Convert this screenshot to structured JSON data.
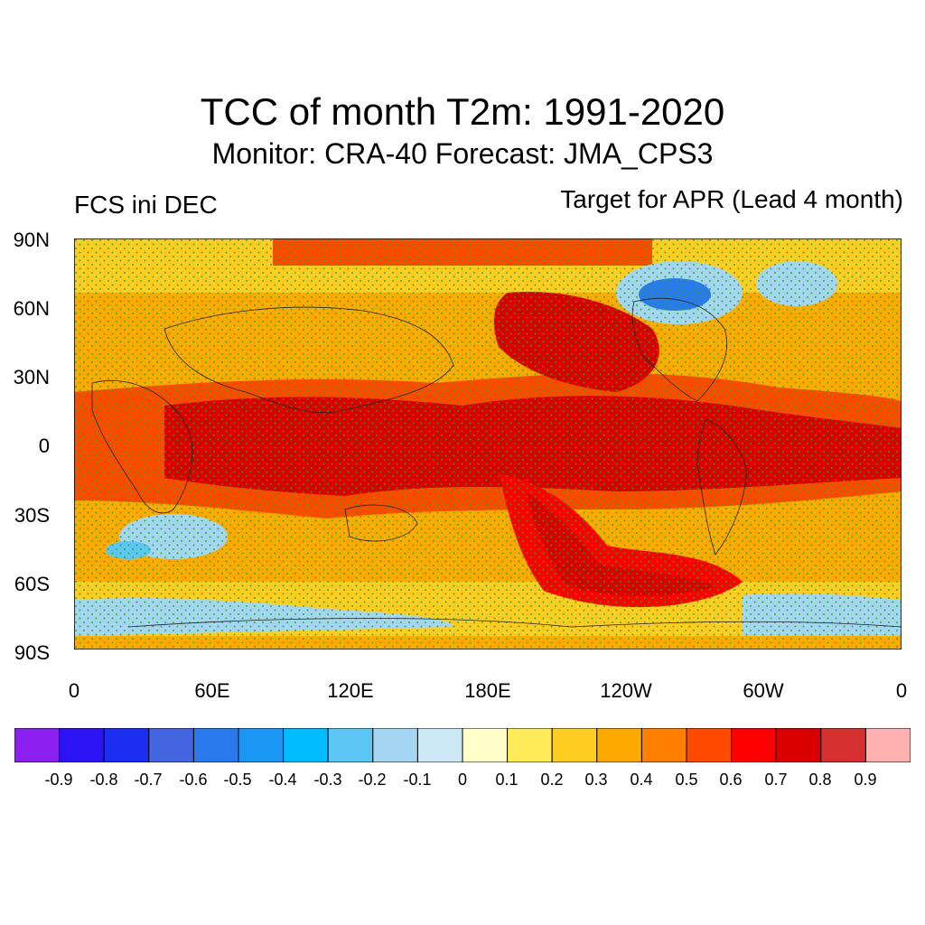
{
  "header": {
    "title": "TCC of month T2m: 1991-2020",
    "subtitle": "Monitor: CRA-40   Forecast: JMA_CPS3",
    "left_label": "FCS ini DEC",
    "right_label": "Target for APR (Lead 4 month)"
  },
  "map": {
    "y_ticks": [
      "90N",
      "60N",
      "30N",
      "0",
      "30S",
      "60S",
      "90S"
    ],
    "x_ticks": [
      "0",
      "60E",
      "120E",
      "180E",
      "120W",
      "60W",
      "0"
    ],
    "field_description_regions": [
      {
        "name": "tropical_pacific",
        "level": 0.8
      },
      {
        "name": "tropical_atlantic_indian",
        "level": 0.7
      },
      {
        "name": "north_pacific",
        "level": 0.6
      },
      {
        "name": "greenland_canada_arctic",
        "level": -0.5
      },
      {
        "name": "southern_ocean_ring",
        "level": -0.2
      }
    ]
  },
  "colorbar": {
    "levels": [
      "-0.9",
      "-0.8",
      "-0.7",
      "-0.6",
      "-0.5",
      "-0.4",
      "-0.3",
      "-0.2",
      "-0.1",
      "0",
      "0.1",
      "0.2",
      "0.3",
      "0.4",
      "0.5",
      "0.6",
      "0.7",
      "0.8",
      "0.9"
    ],
    "colors": [
      "#8a1ff0",
      "#2c12f5",
      "#1c2ef2",
      "#4466e0",
      "#2a7aee",
      "#1a96f5",
      "#00bdff",
      "#5cc6f4",
      "#a4d6f2",
      "#cce8f6",
      "#fffdc8",
      "#ffeb5a",
      "#ffcc22",
      "#ffaa00",
      "#ff7f00",
      "#ff4a00",
      "#ff0000",
      "#d90000",
      "#d63030",
      "#ffb0b0"
    ]
  }
}
